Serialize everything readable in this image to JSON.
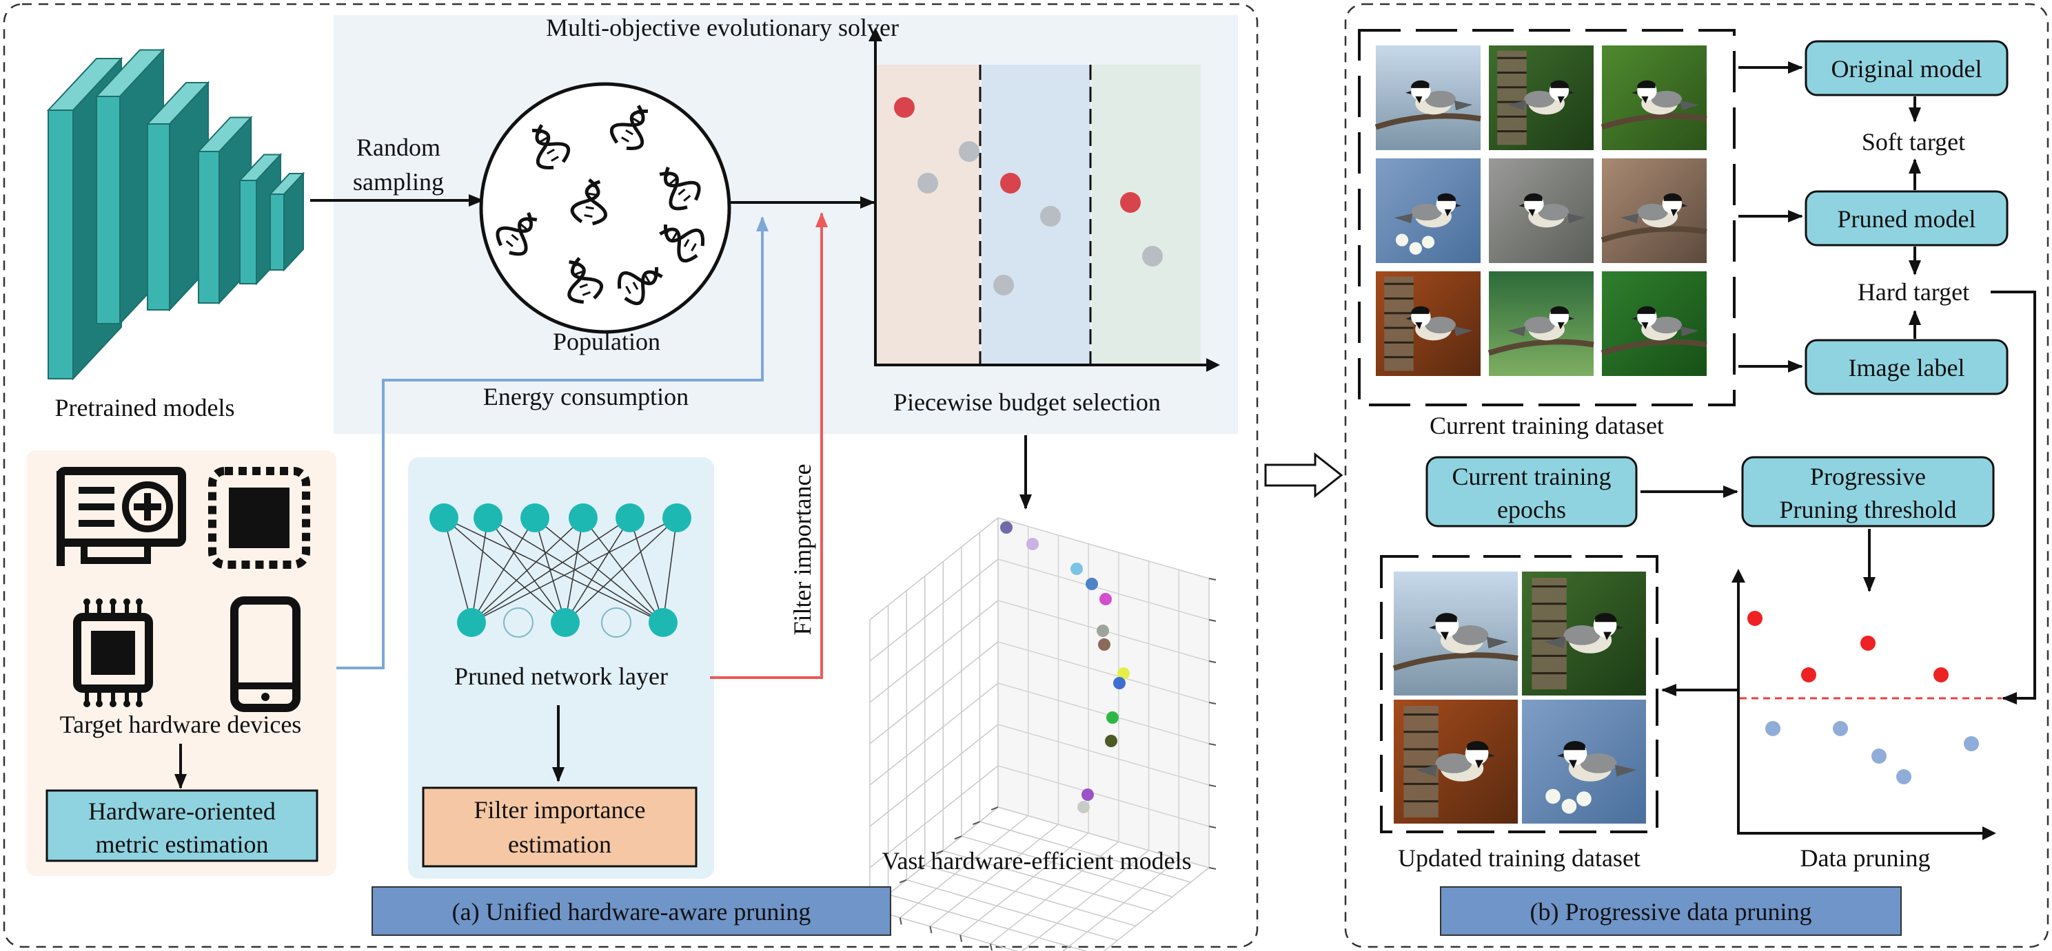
{
  "colors": {
    "teal": "#3cb5b0",
    "teal_dark": "#1f7d79",
    "node": "#1eb8b3",
    "box_blue": "#8fd3e0",
    "box_orange": "#f5c7a4",
    "caption_blue": "#6f95c9",
    "panel_blue": "#eef3f8",
    "panel_orange": "#fdf3ea",
    "arrow_blue": "#7ea7d8",
    "arrow_red": "#ee5a5a",
    "dot_red": "#d9434b",
    "dot_gray": "#b8bcc3",
    "dot_blue": "#90acd9"
  },
  "panel_a": {
    "caption": "(a) Unified hardware-aware pruning",
    "pretrained_models": "Pretrained models",
    "random_sampling_line1": "Random",
    "random_sampling_line2": "sampling",
    "solver_title": "Multi-objective evolutionary solver",
    "population": "Population",
    "energy_consumption": "Energy consumption",
    "filter_importance": "Filter importance",
    "piecewise_budget": "Piecewise budget selection",
    "target_hardware": "Target hardware devices",
    "hw_metric_line1": "Hardware-oriented",
    "hw_metric_line2": "metric estimation",
    "pruned_layer": "Pruned network layer",
    "filter_est_line1": "Filter importance",
    "filter_est_line2": "estimation",
    "vast_models": "Vast hardware-efficient models",
    "icons": [
      "gpu-card-icon",
      "cpu-chip-icon",
      "fpga-chip-icon",
      "smartphone-icon",
      "dna-icon"
    ]
  },
  "panel_b": {
    "caption": "(b) Progressive data pruning",
    "original_model": "Original model",
    "soft_target": "Soft target",
    "pruned_model": "Pruned model",
    "hard_target": "Hard target",
    "image_label": "Image label",
    "current_dataset": "Current training dataset",
    "epochs_line1": "Current training",
    "epochs_line2": "epochs",
    "threshold_line1": "Progressive",
    "threshold_line2": "Pruning threshold",
    "updated_dataset": "Updated training dataset",
    "data_pruning": "Data pruning"
  }
}
